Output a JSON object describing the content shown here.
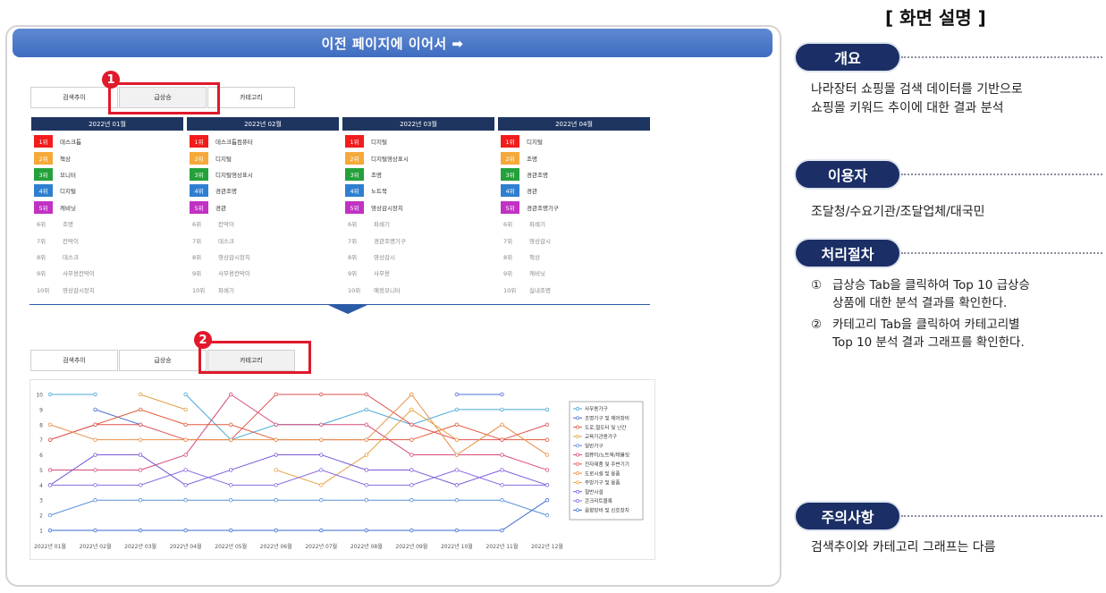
{
  "banner": {
    "text": "이전 페이지에 이어서 ➡"
  },
  "tabs_top": [
    "검색추이",
    "급상승",
    "카테고리"
  ],
  "tabs_bottom": [
    "검색추이",
    "급상승",
    "카테고리"
  ],
  "markers": [
    "1",
    "2"
  ],
  "rankings": [
    {
      "month": "2022년 01월",
      "items": [
        {
          "rank": "1위",
          "name": "데스크톱"
        },
        {
          "rank": "2위",
          "name": "책상"
        },
        {
          "rank": "3위",
          "name": "모니터"
        },
        {
          "rank": "4위",
          "name": "디지털"
        },
        {
          "rank": "5위",
          "name": "캐비닛"
        },
        {
          "rank": "6위",
          "name": "조명"
        },
        {
          "rank": "7위",
          "name": "칸막이"
        },
        {
          "rank": "8위",
          "name": "데스크"
        },
        {
          "rank": "9위",
          "name": "사무용칸막이"
        },
        {
          "rank": "10위",
          "name": "영상감시장치"
        }
      ]
    },
    {
      "month": "2022년 02월",
      "items": [
        {
          "rank": "1위",
          "name": "데스크톱컴퓨터"
        },
        {
          "rank": "2위",
          "name": "디지털"
        },
        {
          "rank": "3위",
          "name": "디지털영상표시"
        },
        {
          "rank": "4위",
          "name": "경관조명"
        },
        {
          "rank": "5위",
          "name": "경관"
        },
        {
          "rank": "6위",
          "name": "칸막이"
        },
        {
          "rank": "7위",
          "name": "데스크"
        },
        {
          "rank": "8위",
          "name": "영상감시장치"
        },
        {
          "rank": "9위",
          "name": "사무용칸막이"
        },
        {
          "rank": "10위",
          "name": "파쇄기"
        }
      ]
    },
    {
      "month": "2022년 03월",
      "items": [
        {
          "rank": "1위",
          "name": "디지털"
        },
        {
          "rank": "2위",
          "name": "디지털영상표시"
        },
        {
          "rank": "3위",
          "name": "조명"
        },
        {
          "rank": "4위",
          "name": "노트북"
        },
        {
          "rank": "5위",
          "name": "영상감시장치"
        },
        {
          "rank": "6위",
          "name": "파쇄기"
        },
        {
          "rank": "7위",
          "name": "경관조명기구"
        },
        {
          "rank": "8위",
          "name": "영상감시"
        },
        {
          "rank": "9위",
          "name": "사무용"
        },
        {
          "rank": "10위",
          "name": "예정모니터"
        }
      ]
    },
    {
      "month": "2022년 04월",
      "items": [
        {
          "rank": "1위",
          "name": "디지털"
        },
        {
          "rank": "2위",
          "name": "조명"
        },
        {
          "rank": "3위",
          "name": "경관조명"
        },
        {
          "rank": "4위",
          "name": "경관"
        },
        {
          "rank": "5위",
          "name": "경관조명기구"
        },
        {
          "rank": "6위",
          "name": "파쇄기"
        },
        {
          "rank": "7위",
          "name": "영상감시"
        },
        {
          "rank": "8위",
          "name": "책상"
        },
        {
          "rank": "9위",
          "name": "캐비닛"
        },
        {
          "rank": "10위",
          "name": "실내조명"
        }
      ]
    }
  ],
  "rank_colors": [
    "#f21c1c",
    "#f5a93a",
    "#24a13a",
    "#2f7fd0",
    "#c032c4"
  ],
  "chart_data": {
    "type": "line",
    "categories": [
      "2022년 01월",
      "2022년 02월",
      "2022년 03월",
      "2022년 04월",
      "2022년 05월",
      "2022년 06월",
      "2022년 07월",
      "2022년 08월",
      "2022년 09월",
      "2022년 10월",
      "2022년 11월",
      "2022년 12월"
    ],
    "ylim": [
      1,
      10
    ],
    "yticks": [
      1,
      2,
      3,
      4,
      5,
      6,
      7,
      8,
      9,
      10
    ],
    "legend_position": "right",
    "series": [
      {
        "name": "사무용가구",
        "color": "#49a8d8",
        "values": [
          10,
          10,
          null,
          10,
          7,
          8,
          8,
          9,
          8,
          9,
          9,
          9
        ]
      },
      {
        "name": "조명기구 및 제어장비",
        "color": "#4a6fd0",
        "values": [
          null,
          9,
          8,
          null,
          null,
          null,
          null,
          null,
          null,
          10,
          10,
          null
        ]
      },
      {
        "name": "도로,철도터 및 난간",
        "color": "#e05a3a",
        "values": [
          7,
          8,
          9,
          8,
          8,
          7,
          7,
          7,
          7,
          8,
          7,
          7
        ]
      },
      {
        "name": "교육기관용가구",
        "color": "#e0a040",
        "values": [
          null,
          null,
          10,
          9,
          null,
          null,
          null,
          null,
          10,
          null,
          null,
          null
        ]
      },
      {
        "name": "일반가구",
        "color": "#5a8fd8",
        "values": [
          2,
          3,
          3,
          3,
          3,
          3,
          3,
          3,
          3,
          3,
          3,
          2
        ]
      },
      {
        "name": "컴퓨터/노트북/태블릿",
        "color": "#d84a7a",
        "values": [
          5,
          5,
          5,
          6,
          10,
          8,
          8,
          8,
          6,
          6,
          6,
          5
        ]
      },
      {
        "name": "전자제품 및 주변기기",
        "color": "#e05050",
        "values": [
          7,
          8,
          8,
          7,
          7,
          10,
          10,
          10,
          8,
          7,
          7,
          8
        ]
      },
      {
        "name": "도로시설 및 용품",
        "color": "#e8904a",
        "values": [
          8,
          7,
          7,
          7,
          7,
          7,
          7,
          7,
          10,
          6,
          8,
          6
        ]
      },
      {
        "name": "주방기구 및 용품",
        "color": "#e8a040",
        "values": [
          null,
          null,
          null,
          null,
          null,
          5,
          4,
          6,
          9,
          7,
          null,
          null
        ]
      },
      {
        "name": "철반시설",
        "color": "#7a5ad8",
        "values": [
          4,
          6,
          6,
          4,
          5,
          6,
          6,
          5,
          5,
          4,
          5,
          4
        ]
      },
      {
        "name": "콘크리트블록",
        "color": "#8a6ae0",
        "values": [
          4,
          4,
          4,
          5,
          4,
          4,
          5,
          4,
          4,
          5,
          4,
          4
        ]
      },
      {
        "name": "음향장비 및 신호장치",
        "color": "#3a6ad0",
        "values": [
          1,
          1,
          1,
          1,
          1,
          1,
          1,
          1,
          1,
          1,
          1,
          3
        ]
      }
    ]
  },
  "side": {
    "title": "[ 화면 설명 ]",
    "sections": [
      {
        "label": "개요",
        "text": [
          "나라장터 쇼핑몰 검색 데이터를 기반으로",
          "쇼핑몰 키워드 추이에 대한 결과 분석"
        ]
      },
      {
        "label": "이용자",
        "text": [
          "조달청/수요기관/조달업체/대국민"
        ]
      },
      {
        "label": "처리절차",
        "steps": [
          {
            "num": "①",
            "lines": [
              "급상승 Tab을 클릭하여 Top 10 급상승",
              "상품에 대한 분석 결과를 확인한다."
            ]
          },
          {
            "num": "②",
            "lines": [
              "카테고리 Tab을 클릭하여 카테고리별",
              "Top 10 분석 결과 그래프를 확인한다."
            ]
          }
        ]
      },
      {
        "label": "주의사항",
        "text": [
          "검색추이와 카테고리 그래프는 다름"
        ]
      }
    ]
  }
}
